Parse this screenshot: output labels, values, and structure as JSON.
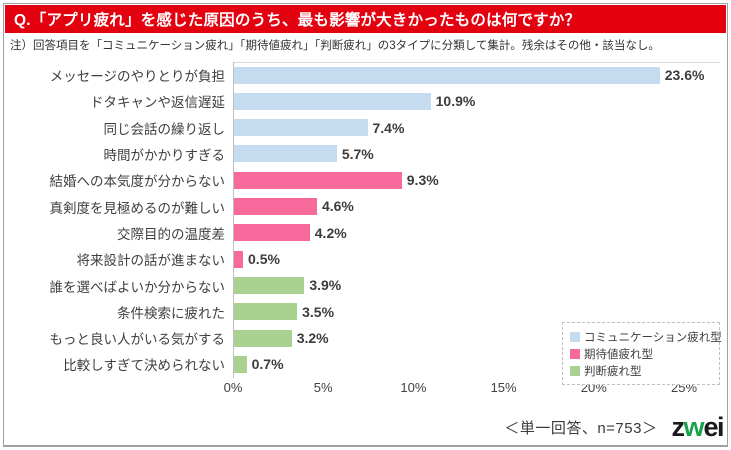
{
  "page": {
    "background": "#FFFFFF",
    "frame_border_color": "#A0A0A0"
  },
  "header": {
    "title": "Q.「アプリ疲れ」を感じた原因のうち、最も影響が大きかったものは何ですか？",
    "bg_color": "#E3000F",
    "text_color": "#FFFFFF"
  },
  "note": "注）回答項目を「コミュニケーション疲れ」「期待値疲れ」「判断疲れ」の3タイプに分類して集計。残余はその他・該当なし。",
  "chart_data": {
    "type": "bar",
    "orientation": "horizontal",
    "title": "",
    "xlabel": "",
    "ylabel": "",
    "xlim": [
      0,
      25
    ],
    "grid": false,
    "tick_values": [
      0,
      5,
      10,
      15,
      20,
      25
    ],
    "tick_labels": [
      "0%",
      "5%",
      "10%",
      "15%",
      "20%",
      "25%"
    ],
    "group_colors": {
      "communication": "#C5DCF0",
      "expectation": "#F96A9C",
      "judgment": "#A9D18F"
    },
    "bars": [
      {
        "category": "メッセージのやりとりが負担",
        "value": 23.6,
        "label": "23.6%",
        "group": "communication"
      },
      {
        "category": "ドタキャンや返信遅延",
        "value": 10.9,
        "label": "10.9%",
        "group": "communication"
      },
      {
        "category": "同じ会話の繰り返し",
        "value": 7.4,
        "label": "7.4%",
        "group": "communication"
      },
      {
        "category": "時間がかかりすぎる",
        "value": 5.7,
        "label": "5.7%",
        "group": "communication"
      },
      {
        "category": "結婚への本気度が分からない",
        "value": 9.3,
        "label": "9.3%",
        "group": "expectation"
      },
      {
        "category": "真剣度を見極めるのが難しい",
        "value": 4.6,
        "label": "4.6%",
        "group": "expectation"
      },
      {
        "category": "交際目的の温度差",
        "value": 4.2,
        "label": "4.2%",
        "group": "expectation"
      },
      {
        "category": "将来設計の話が進まない",
        "value": 0.5,
        "label": "0.5%",
        "group": "expectation"
      },
      {
        "category": "誰を選べばよいか分からない",
        "value": 3.9,
        "label": "3.9%",
        "group": "judgment"
      },
      {
        "category": "条件検索に疲れた",
        "value": 3.5,
        "label": "3.5%",
        "group": "judgment"
      },
      {
        "category": "もっと良い人がいる気がする",
        "value": 3.2,
        "label": "3.2%",
        "group": "judgment"
      },
      {
        "category": "比較しすぎて決められない",
        "value": 0.7,
        "label": "0.7%",
        "group": "judgment"
      }
    ],
    "legend": {
      "position": "right-bottom",
      "border": "dashed",
      "items": [
        {
          "label": "コミュニケーション疲れ型",
          "color": "#C5DCF0"
        },
        {
          "label": "期待値疲れ型",
          "color": "#F96A9C"
        },
        {
          "label": "判断疲れ型",
          "color": "#A9D18F"
        }
      ]
    }
  },
  "footer": {
    "source": "＜単一回答、n=753＞",
    "logo": {
      "part_z": "z",
      "part_w": "w",
      "part_ei": "ei",
      "w_color": "#18A24B",
      "text_color": "#1A1A1A"
    }
  }
}
